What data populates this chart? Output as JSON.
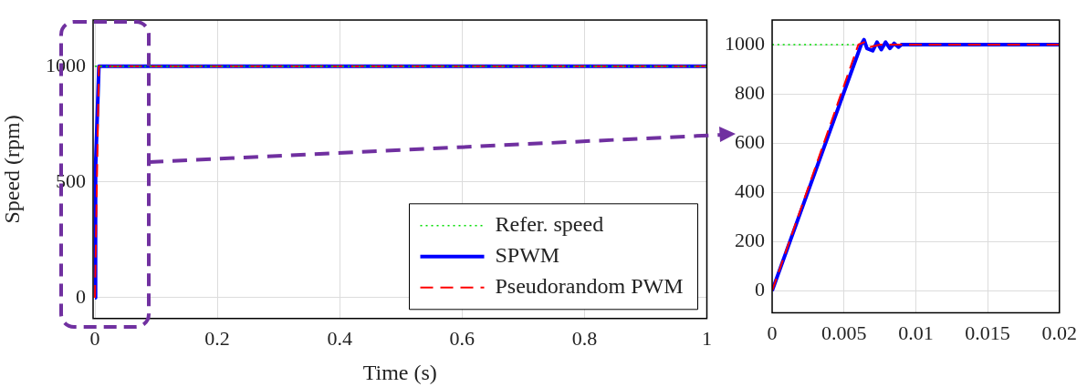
{
  "chart_data": [
    {
      "type": "line",
      "xlabel": "Time (s)",
      "ylabel": "Speed (rpm)",
      "xlim": [
        -0.003,
        1
      ],
      "xticks": [
        0,
        0.2,
        0.4,
        0.6,
        0.8,
        1
      ],
      "ylim": [
        -90,
        1200
      ],
      "yticks": [
        0,
        500,
        1000
      ],
      "grid": true,
      "legend": "bottom right",
      "marker": "none",
      "series": [
        {
          "name": "Refer. speed",
          "color": "#00dd00",
          "line_style": "dotted",
          "x": [
            0,
            1
          ],
          "values": [
            1000,
            1000
          ]
        },
        {
          "name": "SPWM",
          "color": "#0000ff",
          "line_style": "solid",
          "x": [
            0,
            0.001,
            0.0065,
            1
          ],
          "values": [
            0,
            560,
            1000,
            1000
          ]
        },
        {
          "name": "Pseudorandom PWM",
          "color": "#ff0000",
          "line_style": "dashed",
          "x": [
            0,
            0.0065,
            1
          ],
          "values": [
            0,
            1000,
            1000
          ]
        }
      ]
    },
    {
      "type": "line",
      "xlim": [
        0,
        0.02
      ],
      "xticks": [
        0,
        0.005,
        0.01,
        0.015,
        0.02
      ],
      "ylim": [
        -90,
        1100
      ],
      "yticks": [
        0,
        200,
        400,
        600,
        800,
        1000
      ],
      "grid": true,
      "marker": "none",
      "series": [
        {
          "color": "#00dd00",
          "line_style": "dotted",
          "x": [
            0,
            0.0057
          ],
          "values": [
            1000,
            1000
          ]
        },
        {
          "color": "#0000ff",
          "line_style": "solid",
          "x": [
            0,
            0.0062,
            0.0064,
            0.0066,
            0.007,
            0.0073,
            0.0076,
            0.0079,
            0.0082,
            0.0085,
            0.0088,
            0.009,
            0.02
          ],
          "values": [
            0,
            1000,
            1020,
            985,
            975,
            1010,
            980,
            1010,
            985,
            1005,
            990,
            1000,
            1000
          ]
        },
        {
          "color": "#ff0000",
          "line_style": "dashed",
          "x": [
            0,
            0.006,
            0.0064,
            0.0068,
            0.0075,
            0.02
          ],
          "values": [
            0,
            1000,
            1010,
            990,
            1000,
            1000
          ]
        }
      ]
    }
  ]
}
